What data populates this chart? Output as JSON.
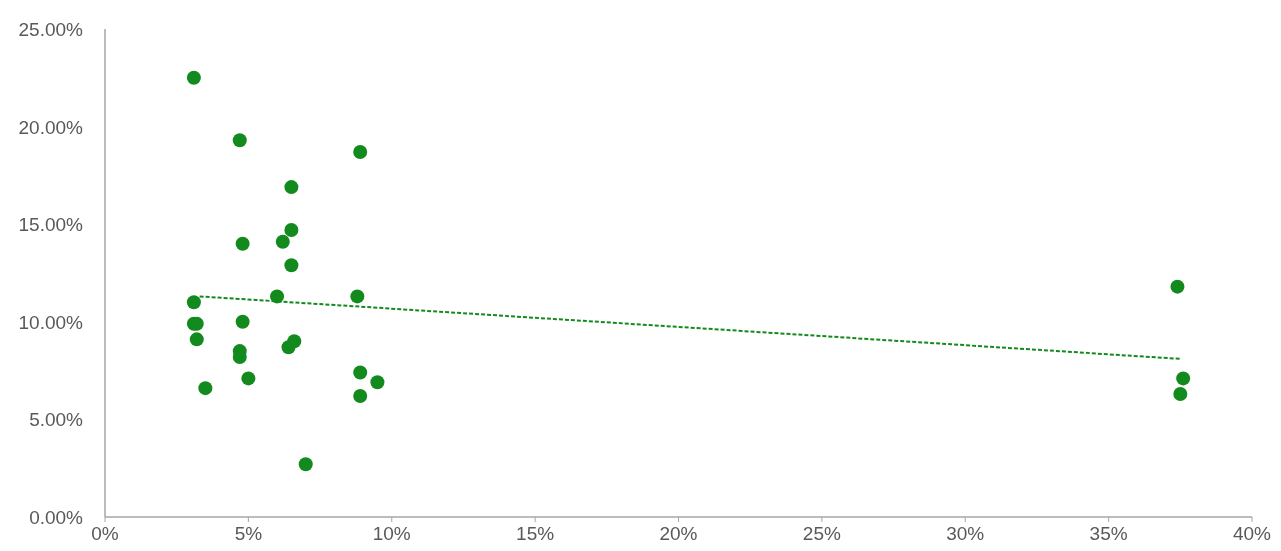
{
  "chart_data": {
    "type": "scatter",
    "marker": "circle",
    "grid": false,
    "xlim": [
      0,
      40
    ],
    "xticks": [
      {
        "value": 0,
        "label": "0%"
      },
      {
        "value": 5,
        "label": "5%"
      },
      {
        "value": 10,
        "label": "10%"
      },
      {
        "value": 15,
        "label": "15%"
      },
      {
        "value": 20,
        "label": "20%"
      },
      {
        "value": 25,
        "label": "25%"
      },
      {
        "value": 30,
        "label": "30%"
      },
      {
        "value": 35,
        "label": "35%"
      },
      {
        "value": 40,
        "label": "40%"
      }
    ],
    "ylim": [
      0,
      25
    ],
    "yticks": [
      {
        "value": 0,
        "label": "0.00%"
      },
      {
        "value": 5,
        "label": "5.00%"
      },
      {
        "value": 10,
        "label": "10.00%"
      },
      {
        "value": 15,
        "label": "15.00%"
      },
      {
        "value": 20,
        "label": "20.00%"
      },
      {
        "value": 25,
        "label": "25.00%"
      }
    ],
    "series": [
      {
        "color": "#138a1e",
        "x": [
          3.1,
          4.7,
          8.9,
          6.5,
          6.5,
          4.8,
          6.2,
          6.5,
          6.0,
          8.8,
          3.1,
          37.4,
          3.1,
          3.2,
          4.8,
          3.2,
          4.7,
          4.7,
          6.4,
          6.6,
          5.0,
          8.9,
          9.5,
          8.9,
          3.5,
          7.0,
          37.6,
          37.5
        ],
        "values": [
          22.5,
          19.3,
          18.7,
          16.9,
          14.7,
          14.0,
          14.1,
          12.9,
          11.3,
          11.3,
          11.0,
          11.8,
          9.9,
          9.9,
          10.0,
          9.1,
          8.5,
          8.2,
          8.7,
          9.0,
          7.1,
          7.4,
          6.9,
          6.2,
          6.6,
          2.7,
          7.1,
          6.3
        ]
      },
      {
        "type": "line",
        "color": "#138a1e",
        "line_style": "dashed",
        "marker": "none",
        "x": [
          3.3,
          37.5
        ],
        "values": [
          11.3,
          8.1
        ]
      }
    ]
  }
}
